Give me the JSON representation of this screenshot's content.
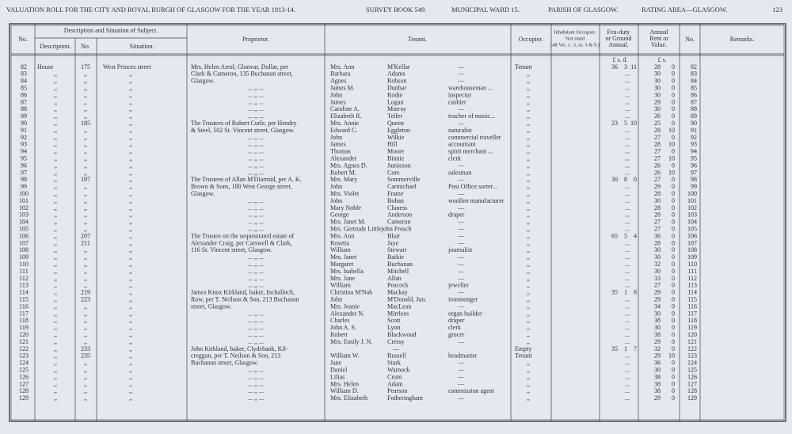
{
  "header": {
    "parts": [
      "VALUATION ROLL FOR THE CITY AND ROYAL BURGH OF GLASGOW FOR THE YEAR 1913-14.",
      "SURVEY BOOK 549.",
      "MUNICIPAL WARD 15.",
      "PARISH OF GLASGOW.",
      "RATING AREA—GLASGOW.",
      "123"
    ]
  },
  "columns": {
    "no": "No.",
    "group": "Description and Situation of Subject.",
    "description": "Description.",
    "number": "No.",
    "situation": "Situation.",
    "proprietor": "Proprietor.",
    "tenant": "Tenant.",
    "occupier": "Occupier.",
    "inhabitant": [
      "Inhabitant Occupier.",
      "Not rated",
      "(48 Vic. c. 3, ss. 3 & 9.)"
    ],
    "feu": [
      "Feu-duty",
      "or Ground",
      "Annual."
    ],
    "rent": [
      "Annual",
      "Rent or",
      "Value."
    ],
    "no2": "No.",
    "remarks": "Remarks.",
    "feu_units": "£ s. d.",
    "rent_units": "£ s."
  },
  "rows": [
    [
      82,
      "House",
      175,
      "West Princes street",
      "Mrs. Helen Arrol, Glonvar, Dollar, per",
      "Mrs. Ann",
      "M'Kellar",
      "—",
      "Tenant",
      [
        36,
        3,
        11
      ],
      28,
      0,
      82
    ],
    [
      83,
      ",,",
      ",,",
      ",,",
      "Clark & Cameron, 135 Buchanan street,",
      "Barbara",
      "Adams",
      "—",
      ",,",
      "...",
      30,
      0,
      83
    ],
    [
      84,
      ",,",
      ",,",
      ",,",
      "Glasgow.",
      "Agnes",
      "Robson",
      "—",
      ",,",
      "...",
      30,
      0,
      84
    ],
    [
      85,
      ",,",
      ",,",
      ",,",
      "...   ,,   ...",
      "James M.",
      "Dunbar",
      "warehouseman ...",
      ",,",
      "...",
      30,
      0,
      85
    ],
    [
      86,
      ",,",
      ",,",
      ",,",
      "...   ,,   ...",
      "John",
      "Rodie",
      "inspector",
      ",,",
      "...",
      30,
      0,
      86
    ],
    [
      87,
      ",,",
      ",,",
      ",,",
      "...   ,,   ...",
      "James",
      "Logan",
      "cashier",
      ",,",
      "...",
      29,
      0,
      87
    ],
    [
      88,
      ",,",
      ",,",
      ",,",
      "...   ,,   ...",
      "Caroline A.",
      "Murray",
      "—",
      ",,",
      "...",
      30,
      0,
      88
    ],
    [
      89,
      ",,",
      ",,",
      ",,",
      "...   ,,   ...",
      "Elizabeth R.",
      "Telfer",
      "teacher of music...",
      ",,",
      "...",
      26,
      0,
      89
    ],
    [
      90,
      ",,",
      185,
      ",,",
      "The Trustees of Robert Curle, per Hendry",
      "Mrs. Annie",
      "Queen",
      "—",
      ",,",
      [
        23,
        5,
        10
      ],
      25,
      0,
      90
    ],
    [
      91,
      ",,",
      ",,",
      ",,",
      "& Steel, 502 St. Vincent street, Glasgow.",
      "Edward C.",
      "Eggleton",
      "naturalist",
      ",,",
      "...",
      28,
      10,
      91
    ],
    [
      92,
      ",,",
      ",,",
      ",,",
      "...   ,,   ...",
      "John",
      "Wilkie",
      "commercial traveller",
      ",,",
      "...",
      27,
      0,
      92
    ],
    [
      93,
      ",,",
      ",,",
      ",,",
      "...   ,,   ...",
      "James",
      "Hill",
      "accountant",
      ",,",
      "...",
      28,
      10,
      93
    ],
    [
      94,
      ",,",
      ",,",
      ",,",
      "...   ,,   ...",
      "Thomas",
      "Moore",
      "spirit merchant ...",
      ",,",
      "...",
      27,
      0,
      94
    ],
    [
      95,
      ",,",
      ",,",
      ",,",
      "...   ,,   ...",
      "Alexander",
      "Binnie",
      "clerk",
      ",,",
      "...",
      27,
      10,
      95
    ],
    [
      96,
      ",,",
      ",,",
      ",,",
      "...   ,,   ...",
      "Mrs. Agnes D.",
      "Jamieson",
      "—",
      ",,",
      "...",
      26,
      0,
      96
    ],
    [
      97,
      ",,",
      ",,",
      ",,",
      "...   ,,   ...",
      "Robert M.",
      "Core",
      "salesman",
      ",,",
      "...",
      26,
      10,
      97
    ],
    [
      98,
      ",,",
      197,
      ",,",
      "The Trustees of Allan M'Diarmid, per A. K.",
      "Mrs. Mary",
      "Sommerville",
      "—",
      ",,",
      [
        30,
        8,
        0
      ],
      27,
      0,
      98
    ],
    [
      99,
      ",,",
      ",,",
      ",,",
      "Brown & Sons, 180 West George street,",
      "John",
      "Carmichael",
      "Post Office sorter...",
      ",,",
      "...",
      29,
      0,
      99
    ],
    [
      100,
      ",,",
      ",,",
      ",,",
      "Glasgow.",
      "Mrs. Violet",
      "Frame",
      "—",
      ",,",
      "...",
      28,
      0,
      100
    ],
    [
      101,
      ",,",
      ",,",
      ",,",
      "...   ,,   ...",
      "John",
      "Bohan",
      "woollen manufacturer",
      ",,",
      "...",
      30,
      0,
      101
    ],
    [
      102,
      ",,",
      ",,",
      ",,",
      "...   ,,   ...",
      "Mary Noble",
      "Cluness",
      "—",
      ",,",
      "...",
      28,
      0,
      102
    ],
    [
      103,
      ",,",
      ",,",
      ",,",
      "...   ,,   ...",
      "George",
      "Anderson",
      "draper",
      ",,",
      "...",
      28,
      0,
      103
    ],
    [
      104,
      ",,",
      ",,",
      ",,",
      "...   ,,   ...",
      "Mrs. Janet M.",
      "Cameron",
      "—",
      ",,",
      "...",
      27,
      0,
      104
    ],
    [
      105,
      ",,",
      ",,",
      ",,",
      "...   ,,   ...",
      "Mrs. Gertrude Littlejohn Frosch",
      null,
      "—",
      ",,",
      "...",
      27,
      0,
      105
    ],
    [
      106,
      ",,",
      207,
      ",,",
      "The Trustee on the sequestrated estate of",
      "Mrs. Ann",
      "Blair",
      "—",
      ",,",
      [
        65,
        5,
        4
      ],
      36,
      0,
      106
    ],
    [
      107,
      ",,",
      211,
      ",,",
      "Alexander Craig, per Carswell & Clark,",
      "Rosetta",
      "Jaye",
      "—",
      ",,",
      "...",
      28,
      0,
      107
    ],
    [
      108,
      ",,",
      ",,",
      ",,",
      "116 St. Vincent street, Glasgow.",
      "William",
      "Stewart",
      "journalist",
      ",,",
      "...",
      30,
      0,
      108
    ],
    [
      109,
      ",,",
      ",,",
      ",,",
      "...   ,,   ...",
      "Mrs. Janet",
      "Baikie",
      "—",
      ",,",
      "...",
      30,
      0,
      109
    ],
    [
      110,
      ",,",
      ",,",
      ",,",
      "...   ,,   ...",
      "Margaret",
      "Buchanan",
      "—",
      ",,",
      "...",
      32,
      0,
      110
    ],
    [
      111,
      ",,",
      ",,",
      ",,",
      "...   ,,   ...",
      "Mrs. Isabella",
      "Mitchell",
      "—",
      ",,",
      "...",
      30,
      0,
      111
    ],
    [
      112,
      ",,",
      ",,",
      ",,",
      "...   ,,   ...",
      "Mrs. Jane",
      "Allan",
      "—",
      ",,",
      "...",
      33,
      0,
      112
    ],
    [
      113,
      ",,",
      ",,",
      ",,",
      "...   ,,   ...",
      "William",
      "Peacock",
      "jeweller",
      ",,",
      "...",
      27,
      0,
      113
    ],
    [
      114,
      ",,",
      219,
      ",,",
      "James Knox Kirkland, baker, Inchalloch,",
      "Christina M'Nab",
      "Mackay",
      "—",
      ",,",
      [
        35,
        1,
        8
      ],
      29,
      0,
      114
    ],
    [
      115,
      ",,",
      223,
      ",,",
      "Row, per T. Neilson & Son, 213 Buchanan",
      "John",
      "M'Donald, Jun.",
      "ironmonger",
      ",,",
      "...",
      29,
      0,
      115
    ],
    [
      116,
      ",,",
      ",,",
      ",,",
      "street, Glasgow.",
      "Mrs. Jeanie",
      "MacLean",
      "—",
      ",,",
      "...",
      34,
      0,
      116
    ],
    [
      117,
      ",,",
      ",,",
      ",,",
      "...   ,,   ...",
      "Alexander N.",
      "Mirrlees",
      "organ builder",
      ",,",
      "...",
      30,
      0,
      117
    ],
    [
      118,
      ",,",
      ",,",
      ",,",
      "...   ,,   ...",
      "Charles",
      "Scott",
      "draper",
      ",,",
      "...",
      38,
      0,
      118
    ],
    [
      119,
      ",,",
      ",,",
      ",,",
      "...   ,,   ...",
      "John A. S.",
      "Lyon",
      "clerk",
      ",,",
      "...",
      30,
      0,
      119
    ],
    [
      120,
      ",,",
      ",,",
      ",,",
      "...   ,,   ...",
      "Robert",
      "Blackwood",
      "grocer",
      ",,",
      "...",
      38,
      0,
      120
    ],
    [
      121,
      ",,",
      ",,",
      ",,",
      "...   ,,   ...",
      "Mrs. Emily J. N.",
      "Cressy",
      "—",
      ",,",
      "...",
      29,
      0,
      121
    ],
    [
      122,
      ",,",
      233,
      ",,",
      "John Kirkland, baker, Clydebank, Kil-",
      null,
      "—",
      null,
      "Empty",
      [
        35,
        1,
        7
      ],
      32,
      0,
      122
    ],
    [
      123,
      ",,",
      235,
      ",,",
      "creggan, per T. Neilson & Son, 213",
      "William W.",
      "Russell",
      "headmaster",
      "Tenant",
      "...",
      29,
      10,
      123
    ],
    [
      124,
      ",,",
      ",,",
      ",,",
      "Buchanan street, Glasgow.",
      "Jane",
      "Stark",
      "—",
      ",,",
      "...",
      36,
      0,
      124
    ],
    [
      125,
      ",,",
      ",,",
      ",,",
      "...   ,,   ...",
      "Daniel",
      "Warnock",
      "—",
      ",,",
      "...",
      30,
      0,
      125
    ],
    [
      126,
      ",,",
      ",,",
      ",,",
      "...   ,,   ...",
      "Lilias",
      "Crum",
      "—",
      ",,",
      "...",
      38,
      0,
      126
    ],
    [
      127,
      ",,",
      ",,",
      ",,",
      "...   ,,   ...",
      "Mrs. Helen",
      "Adam",
      "—",
      ",,",
      "...",
      38,
      0,
      127
    ],
    [
      128,
      ",,",
      ",,",
      ",,",
      "...   ,,   ...",
      "William D.",
      "Pearson",
      "commission agent",
      ",,",
      "...",
      38,
      0,
      128
    ],
    [
      129,
      ",,",
      ",,",
      ",,",
      "...   ,,   ...",
      "Mrs. Elizabeth",
      "Fotheringham",
      "—",
      ",,",
      "...",
      29,
      0,
      129
    ]
  ]
}
